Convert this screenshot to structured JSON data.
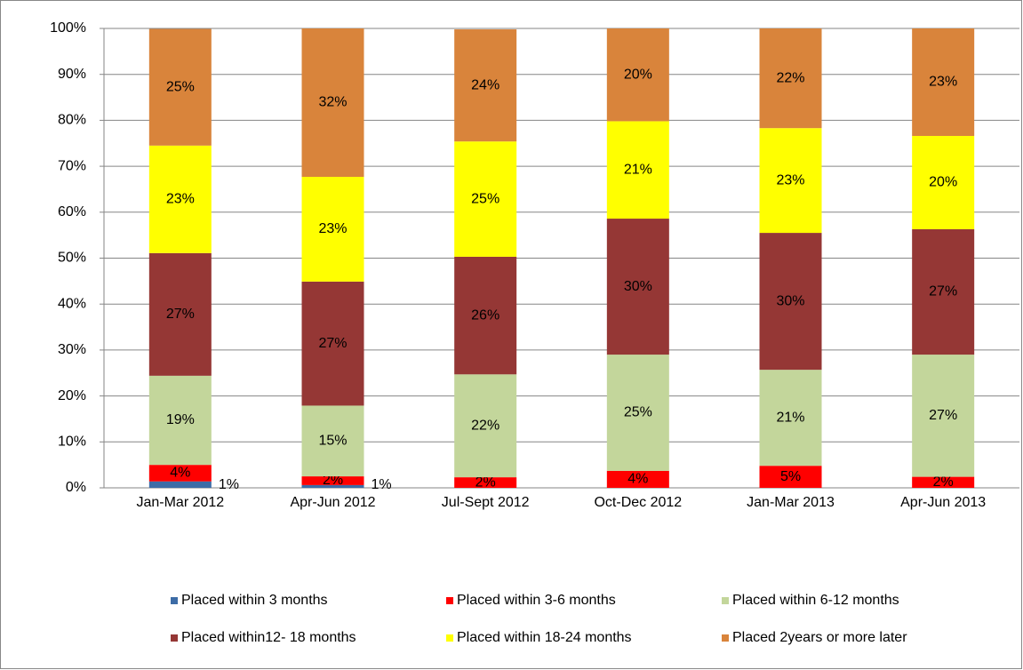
{
  "chart_data": {
    "type": "stacked_bar",
    "categories": [
      "Jan-Mar 2012",
      "Apr-Jun 2012",
      "Jul-Sept 2012",
      "Oct-Dec 2012",
      "Jan-Mar 2013",
      "Apr-Jun 2013"
    ],
    "series": [
      {
        "name": "Placed within 3 months",
        "color": "#3d6ca6",
        "label_color": "#000000",
        "label_position": "outside",
        "values": [
          1.4,
          0.6,
          0,
          0,
          0,
          0
        ],
        "value_labels": [
          "1%",
          "1%",
          null,
          null,
          null,
          null
        ]
      },
      {
        "name": "Placed within 3-6 months",
        "color": "#ff0000",
        "label_color": "#000000",
        "values": [
          3.6,
          1.9,
          2.3,
          3.7,
          4.8,
          2.4
        ],
        "value_labels": [
          "4%",
          "2%",
          "2%",
          "4%",
          "5%",
          "2%"
        ]
      },
      {
        "name": "Placed within 6-12 months",
        "color": "#c3d69b",
        "label_color": "#000000",
        "values": [
          19.4,
          15.4,
          22.4,
          25.3,
          20.9,
          26.6
        ],
        "value_labels": [
          "19%",
          "15%",
          "22%",
          "25%",
          "21%",
          "27%"
        ]
      },
      {
        "name": "Placed within12- 18 months",
        "color": "#953735",
        "label_color": "#ffffff",
        "values": [
          26.7,
          27,
          25.6,
          29.6,
          29.8,
          27.3
        ],
        "value_labels": [
          "27%",
          "27%",
          "26%",
          "30%",
          "30%",
          "27%"
        ]
      },
      {
        "name": "Placed within 18-24 months",
        "color": "#ffff00",
        "label_color": "#000000",
        "values": [
          23.4,
          22.8,
          25.1,
          21.2,
          22.8,
          20.3
        ],
        "value_labels": [
          "23%",
          "23%",
          "25%",
          "21%",
          "23%",
          "20%"
        ]
      },
      {
        "name": "Placed 2years or more later",
        "color": "#d9843b",
        "label_color": "#000000",
        "values": [
          25.4,
          32.3,
          24.4,
          20.2,
          21.7,
          23.4
        ],
        "value_labels": [
          "25%",
          "32%",
          "24%",
          "20%",
          "22%",
          "23%"
        ]
      }
    ],
    "ylim": [
      0,
      100
    ],
    "yticks": [
      {
        "value": 0,
        "label": "0%"
      },
      {
        "value": 10,
        "label": "10%"
      },
      {
        "value": 20,
        "label": "20%"
      },
      {
        "value": 30,
        "label": "30%"
      },
      {
        "value": 40,
        "label": "40%"
      },
      {
        "value": 50,
        "label": "50%"
      },
      {
        "value": 60,
        "label": "60%"
      },
      {
        "value": 70,
        "label": "70%"
      },
      {
        "value": 80,
        "label": "80%"
      },
      {
        "value": 90,
        "label": "90%"
      },
      {
        "value": 100,
        "label": "100%"
      }
    ],
    "grid": true,
    "legend": "bottom"
  }
}
